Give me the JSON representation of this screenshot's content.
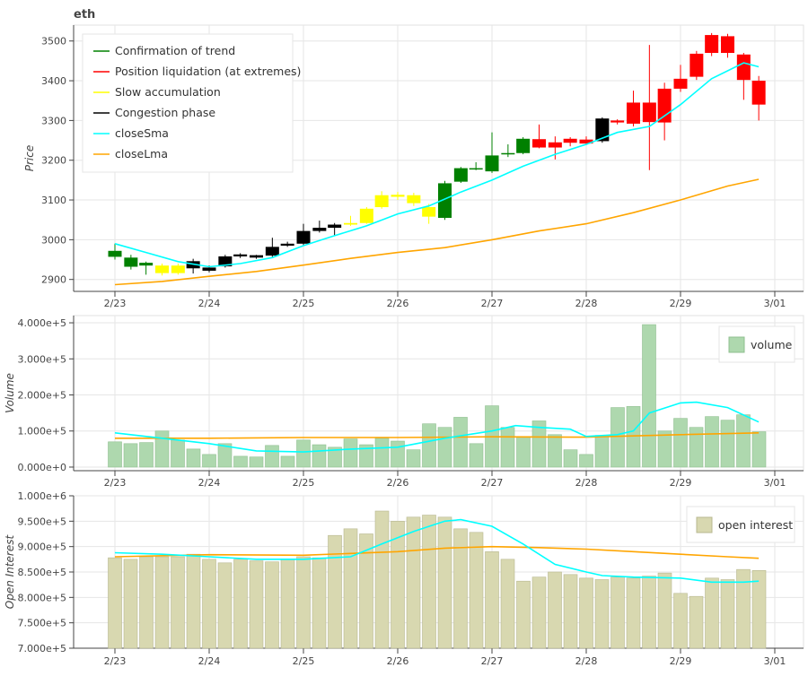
{
  "title": "eth",
  "colors": {
    "trend": "#008000",
    "liquidation": "#ff0000",
    "slow": "#ffff00",
    "congestion": "#000000",
    "closeSma": "#00ffff",
    "closeLma": "#ffa500",
    "volume_fill": "#aed8ae",
    "oi_fill": "#d8d8b0",
    "grid": "#e6e6e6"
  },
  "legend_price": [
    {
      "label": "Confirmation of trend",
      "color": "#008000"
    },
    {
      "label": "Position liquidation (at extremes)",
      "color": "#ff0000"
    },
    {
      "label": "Slow accumulation",
      "color": "#ffff00"
    },
    {
      "label": "Congestion phase",
      "color": "#000000"
    },
    {
      "label": "closeSma",
      "color": "#00ffff"
    },
    {
      "label": "closeLma",
      "color": "#ffa500"
    }
  ],
  "legend_volume": "volume",
  "legend_oi": "open interest",
  "chart_data": [
    {
      "type": "candlestick",
      "title": "eth",
      "ylabel": "Price",
      "x_ticks": [
        "2/23",
        "2/24",
        "2/25",
        "2/26",
        "2/27",
        "2/28",
        "2/29",
        "3/01"
      ],
      "ylim": [
        2870,
        3540
      ],
      "y_ticks": [
        "2900",
        "3000",
        "3100",
        "3200",
        "3300",
        "3400",
        "3500"
      ],
      "legend_position": "top-left",
      "grid": true,
      "candles": [
        {
          "x": 0,
          "o": 2957,
          "c": 2972,
          "h": 2990,
          "l": 2950,
          "phase": "trend"
        },
        {
          "x": 0.17,
          "o": 2955,
          "c": 2932,
          "h": 2962,
          "l": 2925,
          "phase": "trend"
        },
        {
          "x": 0.33,
          "o": 2942,
          "c": 2935,
          "h": 2945,
          "l": 2912,
          "phase": "trend"
        },
        {
          "x": 0.5,
          "o": 2935,
          "c": 2916,
          "h": 2940,
          "l": 2910,
          "phase": "slow"
        },
        {
          "x": 0.67,
          "o": 2916,
          "c": 2935,
          "h": 2940,
          "l": 2912,
          "phase": "slow"
        },
        {
          "x": 0.83,
          "o": 2946,
          "c": 2928,
          "h": 2952,
          "l": 2915,
          "phase": "congestion"
        },
        {
          "x": 1.0,
          "o": 2930,
          "c": 2922,
          "h": 2935,
          "l": 2918,
          "phase": "congestion"
        },
        {
          "x": 1.17,
          "o": 2933,
          "c": 2958,
          "h": 2962,
          "l": 2930,
          "phase": "congestion"
        },
        {
          "x": 1.33,
          "o": 2958,
          "c": 2963,
          "h": 2966,
          "l": 2954,
          "phase": "congestion"
        },
        {
          "x": 1.5,
          "o": 2955,
          "c": 2961,
          "h": 2962,
          "l": 2952,
          "phase": "congestion"
        },
        {
          "x": 1.67,
          "o": 2960,
          "c": 2982,
          "h": 3005,
          "l": 2955,
          "phase": "congestion"
        },
        {
          "x": 1.83,
          "o": 2985,
          "c": 2990,
          "h": 2995,
          "l": 2982,
          "phase": "congestion"
        },
        {
          "x": 2.0,
          "o": 2990,
          "c": 3022,
          "h": 3040,
          "l": 2985,
          "phase": "congestion"
        },
        {
          "x": 2.17,
          "o": 3022,
          "c": 3030,
          "h": 3048,
          "l": 3018,
          "phase": "congestion"
        },
        {
          "x": 2.33,
          "o": 3030,
          "c": 3038,
          "h": 3042,
          "l": 3010,
          "phase": "congestion"
        },
        {
          "x": 2.5,
          "o": 3038,
          "c": 3042,
          "h": 3060,
          "l": 3035,
          "phase": "slow"
        },
        {
          "x": 2.67,
          "o": 3042,
          "c": 3078,
          "h": 3082,
          "l": 3040,
          "phase": "slow"
        },
        {
          "x": 2.83,
          "o": 3082,
          "c": 3112,
          "h": 3122,
          "l": 3078,
          "phase": "slow"
        },
        {
          "x": 3.0,
          "o": 3108,
          "c": 3113,
          "h": 3120,
          "l": 3100,
          "phase": "slow"
        },
        {
          "x": 3.17,
          "o": 3112,
          "c": 3092,
          "h": 3118,
          "l": 3085,
          "phase": "slow"
        },
        {
          "x": 3.33,
          "o": 3082,
          "c": 3058,
          "h": 3090,
          "l": 3040,
          "phase": "slow"
        },
        {
          "x": 3.5,
          "o": 3055,
          "c": 3142,
          "h": 3148,
          "l": 3050,
          "phase": "trend"
        },
        {
          "x": 3.67,
          "o": 3146,
          "c": 3180,
          "h": 3183,
          "l": 3143,
          "phase": "trend"
        },
        {
          "x": 3.83,
          "o": 3177,
          "c": 3180,
          "h": 3195,
          "l": 3175,
          "phase": "trend"
        },
        {
          "x": 4.0,
          "o": 3172,
          "c": 3212,
          "h": 3270,
          "l": 3168,
          "phase": "trend"
        },
        {
          "x": 4.17,
          "o": 3215,
          "c": 3218,
          "h": 3240,
          "l": 3208,
          "phase": "trend"
        },
        {
          "x": 4.33,
          "o": 3218,
          "c": 3254,
          "h": 3258,
          "l": 3215,
          "phase": "trend"
        },
        {
          "x": 4.5,
          "o": 3253,
          "c": 3232,
          "h": 3290,
          "l": 3230,
          "phase": "liquidation"
        },
        {
          "x": 4.67,
          "o": 3245,
          "c": 3232,
          "h": 3260,
          "l": 3202,
          "phase": "liquidation"
        },
        {
          "x": 4.83,
          "o": 3244,
          "c": 3254,
          "h": 3258,
          "l": 3235,
          "phase": "liquidation"
        },
        {
          "x": 5.0,
          "o": 3252,
          "c": 3242,
          "h": 3260,
          "l": 3238,
          "phase": "liquidation"
        },
        {
          "x": 5.17,
          "o": 3248,
          "c": 3305,
          "h": 3308,
          "l": 3244,
          "phase": "congestion"
        },
        {
          "x": 5.33,
          "o": 3300,
          "c": 3295,
          "h": 3303,
          "l": 3290,
          "phase": "liquidation"
        },
        {
          "x": 5.5,
          "o": 3292,
          "c": 3345,
          "h": 3375,
          "l": 3285,
          "phase": "liquidation"
        },
        {
          "x": 5.67,
          "o": 3296,
          "c": 3345,
          "h": 3490,
          "l": 3175,
          "phase": "liquidation"
        },
        {
          "x": 5.83,
          "o": 3295,
          "c": 3380,
          "h": 3395,
          "l": 3250,
          "phase": "liquidation"
        },
        {
          "x": 6.0,
          "o": 3380,
          "c": 3405,
          "h": 3440,
          "l": 3372,
          "phase": "liquidation"
        },
        {
          "x": 6.17,
          "o": 3410,
          "c": 3468,
          "h": 3475,
          "l": 3402,
          "phase": "liquidation"
        },
        {
          "x": 6.33,
          "o": 3470,
          "c": 3515,
          "h": 3520,
          "l": 3462,
          "phase": "liquidation"
        },
        {
          "x": 6.5,
          "o": 3470,
          "c": 3512,
          "h": 3518,
          "l": 3458,
          "phase": "liquidation"
        },
        {
          "x": 6.67,
          "o": 3466,
          "c": 3402,
          "h": 3470,
          "l": 3352,
          "phase": "liquidation"
        },
        {
          "x": 6.83,
          "o": 3400,
          "c": 3340,
          "h": 3412,
          "l": 3300,
          "phase": "liquidation"
        }
      ],
      "closeSma": [
        [
          0,
          2990
        ],
        [
          0.33,
          2968
        ],
        [
          0.67,
          2945
        ],
        [
          1.0,
          2932
        ],
        [
          1.33,
          2940
        ],
        [
          1.67,
          2955
        ],
        [
          2.0,
          2985
        ],
        [
          2.33,
          3010
        ],
        [
          2.67,
          3035
        ],
        [
          3.0,
          3065
        ],
        [
          3.33,
          3085
        ],
        [
          3.67,
          3120
        ],
        [
          4.0,
          3150
        ],
        [
          4.33,
          3185
        ],
        [
          4.67,
          3215
        ],
        [
          5.0,
          3240
        ],
        [
          5.33,
          3270
        ],
        [
          5.67,
          3285
        ],
        [
          6.0,
          3340
        ],
        [
          6.33,
          3405
        ],
        [
          6.67,
          3445
        ],
        [
          6.83,
          3435
        ]
      ],
      "closeLma": [
        [
          0,
          2887
        ],
        [
          0.5,
          2895
        ],
        [
          1.0,
          2908
        ],
        [
          1.5,
          2920
        ],
        [
          2.0,
          2936
        ],
        [
          2.5,
          2953
        ],
        [
          3.0,
          2968
        ],
        [
          3.5,
          2980
        ],
        [
          4.0,
          3000
        ],
        [
          4.5,
          3022
        ],
        [
          5.0,
          3040
        ],
        [
          5.5,
          3068
        ],
        [
          6.0,
          3100
        ],
        [
          6.5,
          3135
        ],
        [
          6.83,
          3152
        ]
      ]
    },
    {
      "type": "bar",
      "ylabel": "Volume",
      "x_ticks": [
        "2/23",
        "2/24",
        "2/25",
        "2/26",
        "2/27",
        "2/28",
        "2/29",
        "3/01"
      ],
      "ylim": [
        -10000,
        420000
      ],
      "y_ticks": [
        "0.000e+0",
        "1.000e+5",
        "2.000e+5",
        "3.000e+5",
        "4.000e+5"
      ],
      "legend_position": "top-right",
      "grid": true,
      "values": [
        70000,
        65000,
        68000,
        100000,
        75000,
        50000,
        35000,
        65000,
        30000,
        28000,
        60000,
        30000,
        75000,
        62000,
        55000,
        78000,
        62000,
        80000,
        72000,
        48000,
        120000,
        110000,
        138000,
        65000,
        170000,
        110000,
        85000,
        128000,
        90000,
        48000,
        35000,
        88000,
        165000,
        168000,
        395000,
        100000,
        135000,
        110000,
        140000,
        130000,
        145000,
        98000
      ],
      "closeSma": [
        [
          0,
          95000
        ],
        [
          0.5,
          80000
        ],
        [
          1.0,
          65000
        ],
        [
          1.5,
          45000
        ],
        [
          2.0,
          42000
        ],
        [
          2.5,
          50000
        ],
        [
          3.0,
          55000
        ],
        [
          3.5,
          80000
        ],
        [
          4.0,
          100000
        ],
        [
          4.25,
          115000
        ],
        [
          4.5,
          110000
        ],
        [
          4.83,
          105000
        ],
        [
          5.0,
          85000
        ],
        [
          5.33,
          90000
        ],
        [
          5.5,
          100000
        ],
        [
          5.67,
          150000
        ],
        [
          6.0,
          178000
        ],
        [
          6.17,
          180000
        ],
        [
          6.5,
          165000
        ],
        [
          6.83,
          125000
        ]
      ],
      "closeLma": [
        [
          0,
          80000
        ],
        [
          1.0,
          80000
        ],
        [
          2.0,
          82000
        ],
        [
          3.0,
          82000
        ],
        [
          4.0,
          84000
        ],
        [
          5.0,
          83000
        ],
        [
          6.0,
          90000
        ],
        [
          6.83,
          95000
        ]
      ]
    },
    {
      "type": "bar",
      "ylabel": "Open Interest",
      "x_ticks": [
        "2/23",
        "2/24",
        "2/25",
        "2/26",
        "2/27",
        "2/28",
        "2/29",
        "3/01"
      ],
      "ylim": [
        700000,
        1000000
      ],
      "y_ticks": [
        "7.000e+5",
        "7.500e+5",
        "8.000e+5",
        "8.500e+5",
        "9.000e+5",
        "9.500e+5",
        "1.000e+6"
      ],
      "legend_position": "top-right",
      "grid": true,
      "values": [
        878000,
        875000,
        880000,
        880000,
        880000,
        885000,
        875000,
        868000,
        875000,
        872000,
        870000,
        875000,
        880000,
        878000,
        922000,
        935000,
        925000,
        970000,
        950000,
        958000,
        962000,
        958000,
        935000,
        928000,
        890000,
        875000,
        832000,
        840000,
        850000,
        845000,
        838000,
        835000,
        840000,
        838000,
        842000,
        848000,
        808000,
        802000,
        838000,
        835000,
        855000,
        853000
      ],
      "closeSma": [
        [
          0,
          888000
        ],
        [
          0.5,
          885000
        ],
        [
          1.0,
          880000
        ],
        [
          1.5,
          875000
        ],
        [
          2.0,
          875000
        ],
        [
          2.5,
          880000
        ],
        [
          2.83,
          905000
        ],
        [
          3.17,
          930000
        ],
        [
          3.5,
          950000
        ],
        [
          3.67,
          953000
        ],
        [
          4.0,
          940000
        ],
        [
          4.33,
          905000
        ],
        [
          4.67,
          865000
        ],
        [
          5.0,
          850000
        ],
        [
          5.17,
          843000
        ],
        [
          5.5,
          840000
        ],
        [
          6.0,
          838000
        ],
        [
          6.33,
          830000
        ],
        [
          6.67,
          830000
        ],
        [
          6.83,
          832000
        ]
      ],
      "closeLma": [
        [
          0,
          880000
        ],
        [
          1.0,
          884000
        ],
        [
          2.0,
          883000
        ],
        [
          3.0,
          890000
        ],
        [
          3.5,
          897000
        ],
        [
          4.0,
          900000
        ],
        [
          4.5,
          898000
        ],
        [
          5.0,
          895000
        ],
        [
          5.5,
          890000
        ],
        [
          6.0,
          885000
        ],
        [
          6.5,
          880000
        ],
        [
          6.83,
          877000
        ]
      ]
    }
  ]
}
